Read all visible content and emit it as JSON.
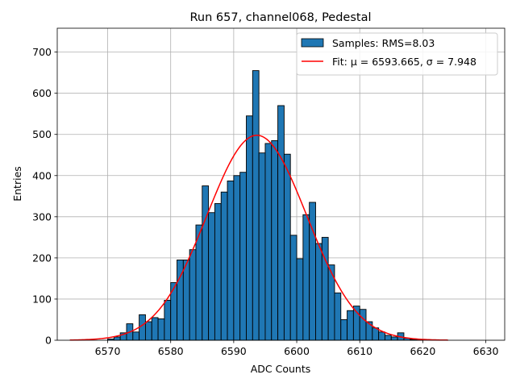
{
  "chart_data": {
    "type": "bar",
    "title": "Run 657, channel068, Pedestal",
    "xlabel": "ADC Counts",
    "ylabel": "Entries",
    "xlim": [
      6562,
      6633
    ],
    "ylim": [
      0,
      758
    ],
    "xticks": [
      6570,
      6580,
      6590,
      6600,
      6610,
      6620,
      6630
    ],
    "yticks": [
      0,
      100,
      200,
      300,
      400,
      500,
      600,
      700
    ],
    "grid": true,
    "legend_position": "top-right",
    "histogram": {
      "name": "Samples: RMS=8.03",
      "color": "#1f77b4",
      "bin_width": 1,
      "bin_starts": [
        6570,
        6571,
        6572,
        6573,
        6574,
        6575,
        6576,
        6577,
        6578,
        6579,
        6580,
        6581,
        6582,
        6583,
        6584,
        6585,
        6586,
        6587,
        6588,
        6589,
        6590,
        6591,
        6592,
        6593,
        6594,
        6595,
        6596,
        6597,
        6598,
        6599,
        6600,
        6601,
        6602,
        6603,
        6604,
        6605,
        6606,
        6607,
        6608,
        6609,
        6610,
        6611,
        6612,
        6613,
        6614,
        6615,
        6616,
        6617,
        6618,
        6619
      ],
      "counts": [
        3,
        8,
        18,
        40,
        20,
        62,
        45,
        55,
        52,
        97,
        140,
        195,
        195,
        220,
        280,
        375,
        310,
        332,
        360,
        387,
        400,
        408,
        545,
        655,
        455,
        478,
        485,
        570,
        452,
        255,
        198,
        305,
        335,
        235,
        250,
        183,
        115,
        50,
        72,
        83,
        75,
        45,
        30,
        20,
        12,
        8,
        18,
        5,
        2,
        1
      ]
    },
    "fit": {
      "name": "Fit: μ = 6593.665, σ = 7.948",
      "color": "#ff0000",
      "mu": 6593.665,
      "sigma": 7.948,
      "amplitude": 498,
      "x_range": [
        6564,
        6624
      ]
    }
  }
}
